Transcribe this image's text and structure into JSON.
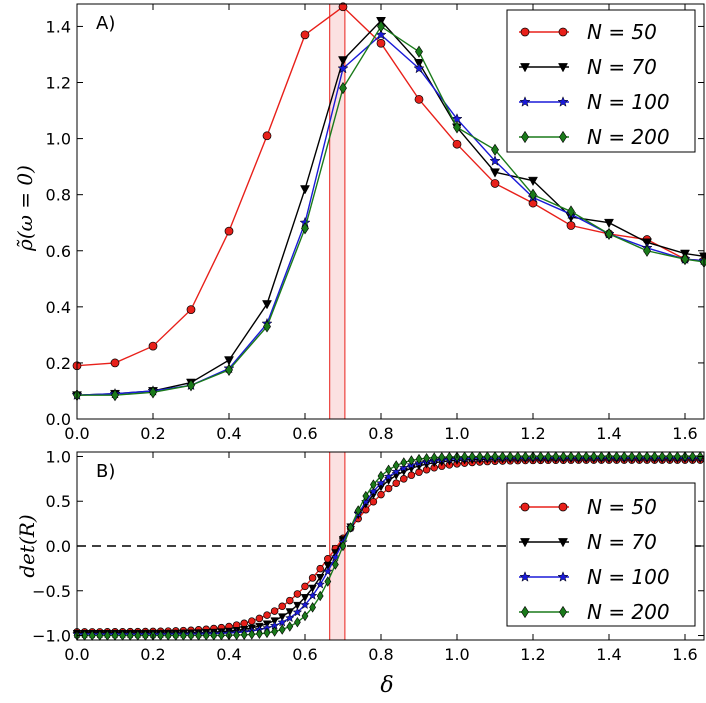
{
  "chart_data": [
    {
      "panel": "A)",
      "type": "line",
      "xlabel": "",
      "ylabel": "ρ̃(ω = 0)",
      "xlim": [
        0.0,
        1.65
      ],
      "ylim": [
        0.0,
        1.48
      ],
      "xticks": [
        "0.0",
        "0.2",
        "0.4",
        "0.6",
        "0.8",
        "1.0",
        "1.2",
        "1.4",
        "1.6"
      ],
      "yticks": [
        "0.0",
        "0.2",
        "0.4",
        "0.6",
        "0.8",
        "1.0",
        "1.2",
        "1.4"
      ],
      "legend_position": "top-right",
      "highlight_band": [
        0.665,
        0.705
      ],
      "series": [
        {
          "name": "N = 50",
          "color": "#e8201a",
          "marker": "circle",
          "x": [
            0.0,
            0.1,
            0.2,
            0.3,
            0.4,
            0.5,
            0.6,
            0.7,
            0.8,
            0.9,
            1.0,
            1.1,
            1.2,
            1.3,
            1.4,
            1.5,
            1.6,
            1.65
          ],
          "y": [
            0.19,
            0.2,
            0.26,
            0.39,
            0.67,
            1.01,
            1.37,
            1.47,
            1.34,
            1.14,
            0.98,
            0.84,
            0.77,
            0.69,
            0.66,
            0.64,
            0.57,
            0.565
          ]
        },
        {
          "name": "N = 70",
          "color": "#000000",
          "marker": "triangle-down",
          "x": [
            0.0,
            0.1,
            0.2,
            0.3,
            0.4,
            0.5,
            0.6,
            0.7,
            0.8,
            0.9,
            1.0,
            1.1,
            1.2,
            1.3,
            1.4,
            1.5,
            1.6,
            1.65
          ],
          "y": [
            0.085,
            0.09,
            0.1,
            0.13,
            0.21,
            0.41,
            0.82,
            1.28,
            1.42,
            1.27,
            1.04,
            0.88,
            0.85,
            0.72,
            0.7,
            0.63,
            0.59,
            0.58
          ]
        },
        {
          "name": "N = 100",
          "color": "#1a1ad8",
          "marker": "star",
          "x": [
            0.0,
            0.1,
            0.2,
            0.3,
            0.4,
            0.5,
            0.6,
            0.7,
            0.8,
            0.9,
            1.0,
            1.1,
            1.2,
            1.3,
            1.4,
            1.5,
            1.6,
            1.65
          ],
          "y": [
            0.085,
            0.09,
            0.1,
            0.12,
            0.18,
            0.34,
            0.7,
            1.25,
            1.37,
            1.25,
            1.07,
            0.92,
            0.79,
            0.73,
            0.66,
            0.61,
            0.57,
            0.565
          ]
        },
        {
          "name": "N = 200",
          "color": "#1a7a1a",
          "marker": "diamond",
          "x": [
            0.0,
            0.1,
            0.2,
            0.3,
            0.4,
            0.5,
            0.6,
            0.7,
            0.8,
            0.9,
            1.0,
            1.1,
            1.2,
            1.3,
            1.4,
            1.5,
            1.6,
            1.65
          ],
          "y": [
            0.085,
            0.085,
            0.095,
            0.12,
            0.175,
            0.33,
            0.68,
            1.18,
            1.4,
            1.31,
            1.04,
            0.96,
            0.8,
            0.74,
            0.66,
            0.6,
            0.57,
            0.56
          ]
        }
      ]
    },
    {
      "panel": "B)",
      "type": "line",
      "xlabel": "δ",
      "ylabel": "det(R)",
      "xlim": [
        0.0,
        1.65
      ],
      "ylim": [
        -1.05,
        1.05
      ],
      "xticks": [
        "0.0",
        "0.2",
        "0.4",
        "0.6",
        "0.8",
        "1.0",
        "1.2",
        "1.4",
        "1.6"
      ],
      "yticks": [
        "−1.0",
        "−0.5",
        "0.0",
        "0.5",
        "1.0"
      ],
      "legend_position": "lower-right",
      "highlight_band": [
        0.665,
        0.705
      ],
      "reference_line": 0.0,
      "curve_model": {
        "form": "y = ymax*tanh(k*(x - x0))",
        "x_start": 0.0,
        "x_end": 1.65,
        "step": 0.02
      },
      "series": [
        {
          "name": "N = 50",
          "color": "#e8201a",
          "marker": "circle",
          "x0": 0.685,
          "k": 6.0,
          "ymax": 0.96
        },
        {
          "name": "N = 70",
          "color": "#000000",
          "marker": "triangle-down",
          "x0": 0.69,
          "k": 7.5,
          "ymax": 0.975
        },
        {
          "name": "N = 100",
          "color": "#1a1ad8",
          "marker": "star",
          "x0": 0.695,
          "k": 8.5,
          "ymax": 0.985
        },
        {
          "name": "N = 200",
          "color": "#1a7a1a",
          "marker": "diamond",
          "x0": 0.7,
          "k": 10.5,
          "ymax": 1.0
        }
      ]
    }
  ]
}
